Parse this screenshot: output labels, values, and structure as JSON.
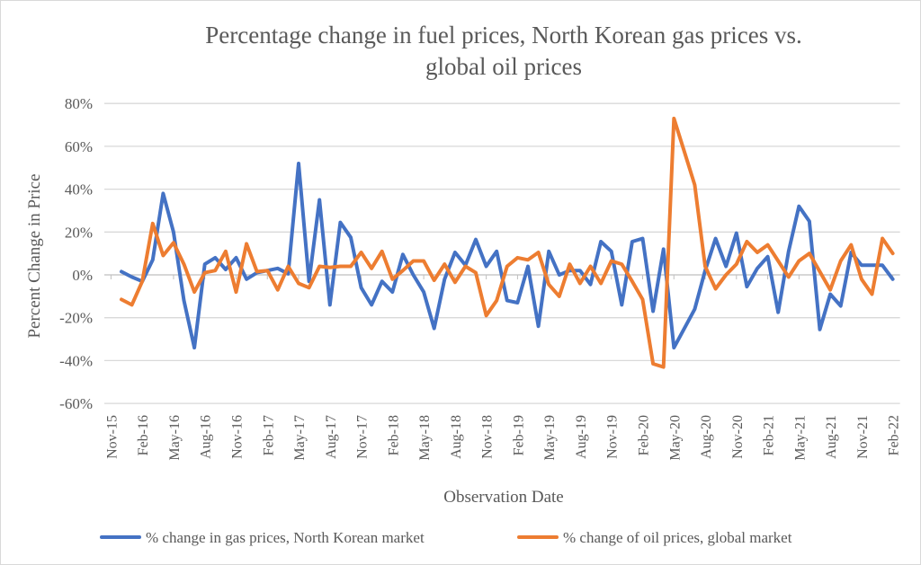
{
  "chart_data": {
    "type": "line",
    "title_line1": "Percentage change in fuel prices, North Korean gas prices vs.",
    "title_line2": "global oil prices",
    "xlabel": "Observation Date",
    "ylabel": "Percent Change in Price",
    "ylim": [
      -60,
      80
    ],
    "yticks": [
      -60,
      -40,
      -20,
      0,
      20,
      40,
      60,
      80
    ],
    "ytick_labels": [
      "-60%",
      "-40%",
      "-20%",
      "0%",
      "20%",
      "40%",
      "60%",
      "80%"
    ],
    "xlim": [
      "2015-11",
      "2022-02"
    ],
    "xtick_labels": [
      "Nov-15",
      "Feb-16",
      "May-16",
      "Aug-16",
      "Nov-16",
      "Feb-17",
      "May-17",
      "Aug-17",
      "Nov-17",
      "Feb-18",
      "May-18",
      "Aug-18",
      "Nov-18",
      "Feb-19",
      "May-19",
      "Aug-19",
      "Nov-19",
      "Feb-20",
      "May-20",
      "Aug-20",
      "Nov-20",
      "Feb-21",
      "May-21",
      "Aug-21",
      "Nov-21",
      "Feb-22"
    ],
    "grid": true,
    "legend_position": "bottom",
    "x": [
      "2015-12",
      "2016-01",
      "2016-02",
      "2016-03",
      "2016-04",
      "2016-05",
      "2016-06",
      "2016-07",
      "2016-08",
      "2016-09",
      "2016-10",
      "2016-11",
      "2016-12",
      "2017-01",
      "2017-02",
      "2017-03",
      "2017-04",
      "2017-05",
      "2017-06",
      "2017-07",
      "2017-08",
      "2017-09",
      "2017-10",
      "2017-11",
      "2017-12",
      "2018-01",
      "2018-02",
      "2018-03",
      "2018-04",
      "2018-05",
      "2018-06",
      "2018-07",
      "2018-08",
      "2018-09",
      "2018-10",
      "2018-11",
      "2018-12",
      "2019-01",
      "2019-02",
      "2019-03",
      "2019-04",
      "2019-05",
      "2019-06",
      "2019-07",
      "2019-08",
      "2019-09",
      "2019-10",
      "2019-11",
      "2019-12",
      "2020-01",
      "2020-02",
      "2020-03",
      "2020-04",
      "2020-05",
      "2020-06",
      "2020-07",
      "2020-08",
      "2020-09",
      "2020-10",
      "2020-11",
      "2020-12",
      "2021-01",
      "2021-02",
      "2021-03",
      "2021-04",
      "2021-05",
      "2021-06",
      "2021-07",
      "2021-08",
      "2021-09",
      "2021-10",
      "2021-11",
      "2021-12",
      "2022-01",
      "2022-02"
    ],
    "series": [
      {
        "name": "% change in gas prices, North Korean market",
        "color": "#4472c4",
        "values": [
          1.5,
          -1,
          -3,
          7,
          38,
          20,
          -12,
          -34,
          5,
          8,
          2.5,
          8,
          -2,
          1,
          2,
          3,
          0.5,
          52,
          -3,
          35,
          -14,
          24.5,
          17.5,
          -6,
          -14,
          -3,
          -8,
          9.5,
          0,
          -8,
          -25,
          -2,
          10.5,
          4.5,
          16.5,
          4,
          11,
          -12,
          -13,
          4,
          -24,
          11,
          0,
          2,
          2,
          -4.5,
          15.5,
          11,
          -14,
          15.5,
          17,
          -17,
          12,
          -34,
          -25,
          -16,
          2,
          17,
          4,
          19.5,
          -5.5,
          3,
          8.5,
          -17.5,
          11,
          32,
          25,
          -25.5,
          -9,
          -14.5,
          10.5,
          4.5,
          4.5,
          4.5,
          -2
        ]
      },
      {
        "name": "% change of oil prices, global market",
        "color": "#ed7d31",
        "values": [
          -11.5,
          -14,
          -3,
          24,
          9,
          15,
          5,
          -8,
          1,
          2,
          11,
          -8,
          14.5,
          1.5,
          2,
          -7,
          4,
          -4,
          -6,
          4,
          3.5,
          4,
          4,
          10.5,
          3,
          11,
          -2,
          2,
          6.5,
          6.5,
          -2.5,
          5,
          -3.5,
          4,
          1,
          -19,
          -12,
          4,
          8,
          7,
          10.5,
          -4.5,
          -10,
          5,
          -4,
          4,
          -4,
          6.5,
          5,
          -3,
          -11.5,
          -41.5,
          -43,
          73,
          57.5,
          42,
          4,
          -6.5,
          0,
          5,
          15.5,
          10.5,
          14,
          6.5,
          -1,
          6.5,
          10,
          1.5,
          -7,
          6.5,
          14,
          -2,
          -9,
          17,
          10
        ]
      }
    ]
  }
}
